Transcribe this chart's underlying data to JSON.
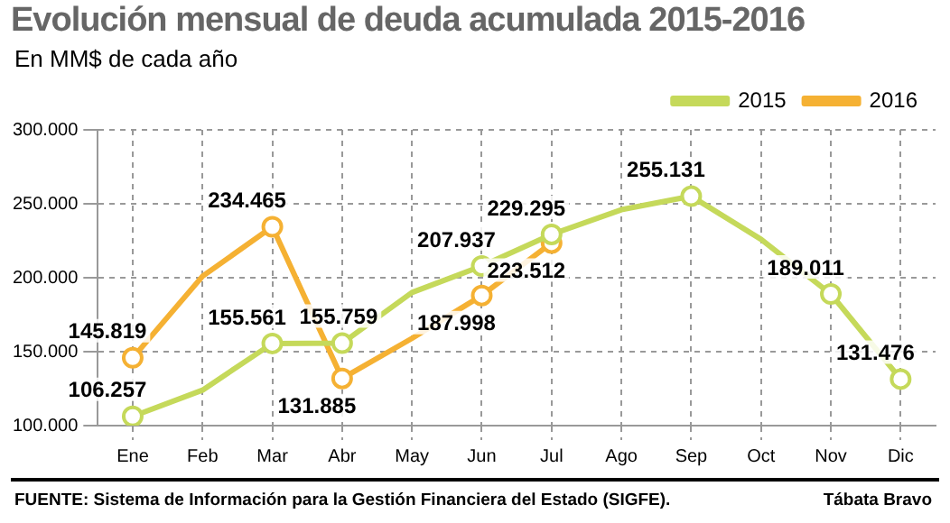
{
  "chart_data": {
    "type": "line",
    "title": "Evolución mensual de deuda acumulada 2015-2016",
    "subtitle": "En MM$ de cada año",
    "categories": [
      "Ene",
      "Feb",
      "Mar",
      "Abr",
      "May",
      "Jun",
      "Jul",
      "Ago",
      "Sep",
      "Oct",
      "Nov",
      "Dic"
    ],
    "series": [
      {
        "name": "2015",
        "color": "#c5d95a",
        "values": [
          106257,
          124000,
          155561,
          155759,
          190000,
          207937,
          229295,
          246000,
          255131,
          226000,
          189011,
          131476
        ],
        "value_labels": [
          "106.257",
          null,
          "155.561",
          "155.759",
          null,
          "207.937",
          "229.295",
          null,
          "255.131",
          null,
          "189.011",
          "131.476"
        ]
      },
      {
        "name": "2016",
        "color": "#f5b133",
        "values": [
          145819,
          201000,
          234465,
          131885,
          159000,
          187998,
          223512,
          null,
          null,
          null,
          null,
          null
        ],
        "value_labels": [
          "145.819",
          null,
          "234.465",
          "131.885",
          null,
          "187.998",
          "223.512",
          null,
          null,
          null,
          null,
          null
        ]
      }
    ],
    "ylim": [
      100000,
      300000
    ],
    "yticks": [
      {
        "value": 100000,
        "label": "100.000"
      },
      {
        "value": 150000,
        "label": "150.000"
      },
      {
        "value": 200000,
        "label": "200.000"
      },
      {
        "value": 250000,
        "label": "250.000"
      },
      {
        "value": 300000,
        "label": "300.000"
      }
    ],
    "grid": true,
    "legend": "top right",
    "marker": "circle",
    "line_style": "solid",
    "annotations": [
      "FUENTE: Sistema de Información para la Gestión Financiera del Estado (SIGFE).",
      "Tábata Bravo"
    ]
  }
}
